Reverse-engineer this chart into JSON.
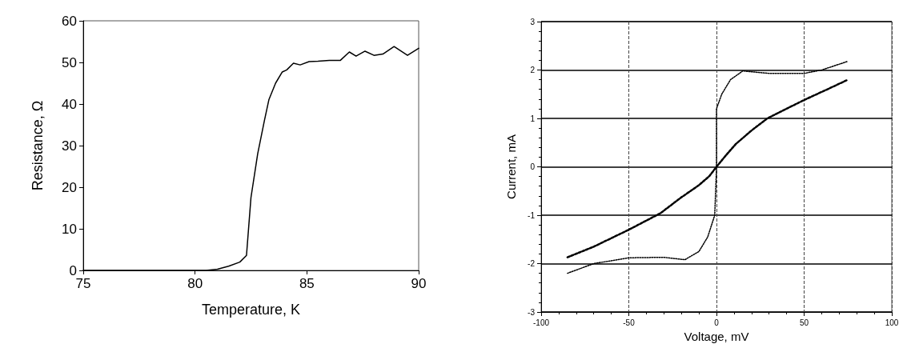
{
  "chart_data": [
    {
      "type": "line",
      "xlabel": "Temperature, K",
      "ylabel": "Resistance, Ω",
      "xlim": [
        75,
        90
      ],
      "xticks": [
        75,
        80,
        85,
        90
      ],
      "ylim": [
        0,
        60
      ],
      "yticks": [
        0,
        10,
        20,
        30,
        40,
        50,
        60
      ],
      "grid": false,
      "marker": "none",
      "line_style": "solid",
      "series": [
        {
          "color": "#000000",
          "x": [
            75,
            77,
            79,
            80.5,
            81,
            81.5,
            82,
            82.3,
            82.5,
            82.8,
            83.1,
            83.3,
            83.6,
            83.9,
            84.1,
            84.4,
            84.7,
            85.1,
            85.5,
            86,
            86.5,
            86.9,
            87.2,
            87.6,
            88,
            88.4,
            88.9,
            89.5,
            90
          ],
          "values": [
            0,
            0,
            0,
            0,
            0.3,
            1,
            2,
            3.6,
            17.5,
            28,
            36,
            41,
            45,
            47.7,
            48.2,
            49.8,
            49.4,
            50.2,
            50.3,
            50.5,
            50.5,
            52.5,
            51.5,
            52.7,
            51.7,
            52,
            53.8,
            51.7,
            53.4
          ]
        }
      ]
    },
    {
      "type": "line",
      "xlabel": "Voltage, mV",
      "ylabel": "Current, mA",
      "xlim": [
        -100,
        100
      ],
      "xticks": [
        -100,
        -50,
        0,
        50,
        100
      ],
      "ylim": [
        -3,
        3
      ],
      "yticks": [
        -3,
        -2,
        -1,
        0,
        1,
        2,
        3
      ],
      "grid": true,
      "marker": "none",
      "series": [
        {
          "color": "#000000",
          "line_style": "dotted",
          "x": [
            -85,
            -70,
            -50,
            -30,
            -18,
            -10,
            -5,
            -1,
            0,
            0,
            3,
            8,
            15,
            30,
            50,
            60,
            75
          ],
          "values": [
            -2.2,
            -2.0,
            -1.88,
            -1.87,
            -1.92,
            -1.75,
            -1.45,
            -1.0,
            -0.05,
            1.2,
            1.5,
            1.8,
            1.98,
            1.93,
            1.93,
            2.0,
            2.18
          ]
        },
        {
          "color": "#000000",
          "line_style": "dashed",
          "x": [
            -85,
            -70,
            -50,
            -32,
            -20,
            -10,
            -4,
            0,
            5,
            11,
            20,
            29,
            40,
            50,
            62,
            75
          ],
          "values": [
            -1.87,
            -1.65,
            -1.3,
            -0.96,
            -0.63,
            -0.38,
            -0.19,
            0,
            0.22,
            0.47,
            0.75,
            1.0,
            1.2,
            1.38,
            1.58,
            1.8
          ]
        }
      ]
    }
  ]
}
